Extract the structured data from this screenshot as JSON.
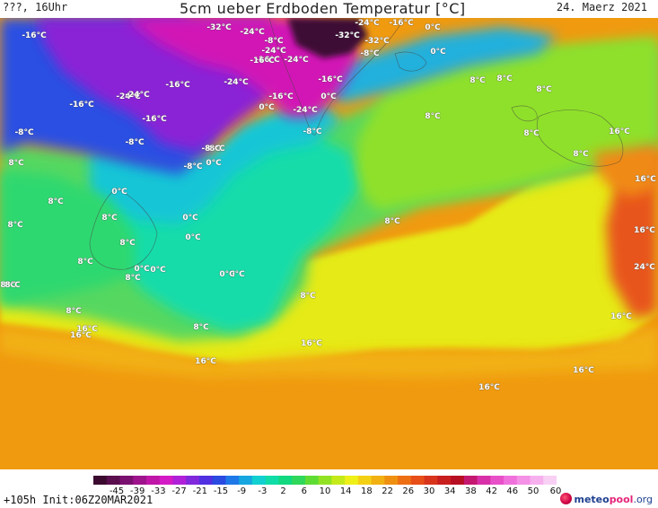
{
  "header": {
    "left": "???, 16Uhr",
    "title": "5cm ueber Erdboden Temperatur [°C]",
    "date": "24. Maerz 2021"
  },
  "map": {
    "labels": [
      "-16°C",
      "-32°C",
      "-24°C",
      "-8°C",
      "-24°C",
      "-16°C",
      "-16°C",
      "-24°C",
      "-32°C",
      "-32°C",
      "-24°C",
      "-16°C",
      "0°C",
      "0°C",
      "-8°C",
      "8°C",
      "-24°C",
      "-16°C",
      "-24°C",
      "-16°C",
      "-24°C",
      "-16°C",
      "-8°C",
      "0°C",
      "0°C",
      "-24°C",
      "-8°C",
      "-16°C",
      "-8°C",
      "-8°C",
      "8°C",
      "-16°C",
      "-8°C",
      "-8°C",
      "0°C",
      "8°C",
      "8°C",
      "8°C",
      "8°C",
      "8°C",
      "0°C",
      "8°C",
      "0°C",
      "0°C",
      "8°C",
      "0°C",
      "8°C",
      "16°C",
      "0°C",
      "0°C",
      "8°C",
      "8°C",
      "8°C",
      "8°C",
      "8°C",
      "16°C",
      "16°C",
      "16°C",
      "16°C",
      "16°C",
      "8°C",
      "16°C",
      "24°C",
      "16°C",
      "8°C",
      "0°C",
      "8°C",
      "8°C",
      "16°C",
      "16°C"
    ],
    "colors": {
      "deep_purple": "#3a0a33",
      "magenta": "#d012b8",
      "violet": "#8a22d8",
      "blue": "#2a4be0",
      "cyan": "#12c9d0",
      "turquoise": "#10dda4",
      "green": "#2fd86f",
      "lime": "#8fe22a",
      "yellow": "#e8ee15",
      "orange": "#f09a10",
      "red": "#e0401a"
    }
  },
  "legend": {
    "ticks": [
      "-45",
      "-39",
      "-33",
      "-27",
      "-21",
      "-15",
      "-9",
      "-3",
      "2",
      "6",
      "10",
      "14",
      "18",
      "22",
      "26",
      "30",
      "34",
      "38",
      "42",
      "46",
      "50",
      "60"
    ],
    "colors": [
      "#3b0a2f",
      "#5a0e4e",
      "#7a1070",
      "#9e148c",
      "#c016a8",
      "#d41ac4",
      "#b020d8",
      "#8028dc",
      "#5030e0",
      "#2a4ae2",
      "#1f78e8",
      "#16a6e0",
      "#12cfd0",
      "#10dca8",
      "#12d880",
      "#2fd85a",
      "#5fdc34",
      "#92e224",
      "#c4ea1a",
      "#eef018",
      "#f4d014",
      "#f2b012",
      "#f09010",
      "#ee6e14",
      "#e84e18",
      "#d8341c",
      "#c81e1e",
      "#b80e22",
      "#c41870",
      "#d830a8",
      "#e850c8",
      "#f070dc",
      "#f490e6",
      "#f6b0ee",
      "#f8d0f4"
    ],
    "run_info": "+105h Init:06Z20MAR2021",
    "brand_meteo": "meteo",
    "brand_pool": "pool",
    "brand_org": ".org"
  }
}
